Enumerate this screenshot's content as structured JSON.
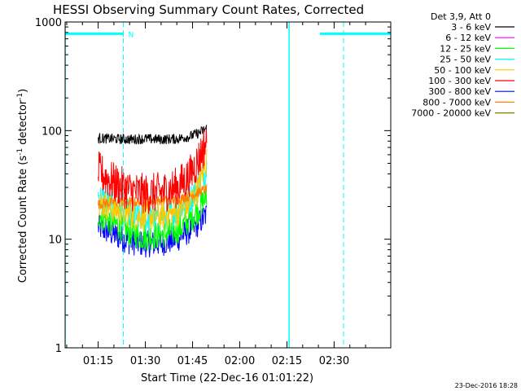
{
  "chart_data": {
    "type": "line",
    "title": "HESSI Observing Summary Count Rates, Corrected",
    "xlabel": "Start Time (22-Dec-16 01:01:22)",
    "ylabel_parts": [
      "Corrected Count Rate (s",
      "-1",
      " detector",
      "-1",
      ")"
    ],
    "y_scale": "log",
    "ylim": [
      1,
      1000
    ],
    "xlim_minutes": [
      64.5,
      168.0
    ],
    "x_ticks": [
      {
        "label": "01:15",
        "minutes": 75
      },
      {
        "label": "01:30",
        "minutes": 90
      },
      {
        "label": "01:45",
        "minutes": 105
      },
      {
        "label": "02:00",
        "minutes": 120
      },
      {
        "label": "02:15",
        "minutes": 135
      },
      {
        "label": "02:30",
        "minutes": 150
      }
    ],
    "y_ticks": [
      {
        "label": "1",
        "value": 1
      },
      {
        "label": "10",
        "value": 10
      },
      {
        "label": "100",
        "value": 100
      },
      {
        "label": "1000",
        "value": 1000
      }
    ],
    "legend_title": "Det 3,9, Att 0",
    "series": [
      {
        "name": "3 - 6 keV",
        "color": "#000000",
        "x": [
          75,
          80,
          85,
          90,
          95,
          100,
          104,
          107,
          109.5
        ],
        "y": [
          85,
          84,
          83,
          84,
          83,
          84,
          88,
          95,
          105
        ],
        "noise": 0.05
      },
      {
        "name": "6 - 12 keV",
        "color": "#ff00ff",
        "x": [],
        "y": []
      },
      {
        "name": "12 - 25 keV",
        "color": "#00ff00",
        "x": [
          75,
          80,
          85,
          90,
          95,
          100,
          104,
          107,
          109.5
        ],
        "y": [
          17,
          14,
          11.5,
          10.5,
          11,
          12,
          15,
          19,
          25
        ],
        "noise": 0.14
      },
      {
        "name": "25 - 50 keV",
        "color": "#00ffff",
        "x": [
          75,
          80,
          85,
          90,
          95,
          100,
          104,
          107,
          109.5
        ],
        "y": [
          25,
          20,
          17,
          15,
          16,
          18,
          23,
          32,
          45
        ],
        "noise": 0.14
      },
      {
        "name": "50 - 100 keV",
        "color": "#ffc800",
        "x": [
          75,
          80,
          85,
          90,
          95,
          100,
          104,
          107,
          109.5
        ],
        "y": [
          22,
          19,
          17,
          16,
          16.5,
          17.5,
          21,
          30,
          55
        ],
        "noise": 0.14
      },
      {
        "name": "100 - 300 keV",
        "color": "#ff0000",
        "x": [
          75,
          80,
          85,
          90,
          95,
          100,
          104,
          107,
          109.5
        ],
        "y": [
          42,
          33,
          28,
          26,
          27,
          30,
          38,
          55,
          80
        ],
        "noise": 0.2
      },
      {
        "name": "300 - 800 keV",
        "color": "#0000ff",
        "x": [
          75,
          80,
          85,
          90,
          95,
          100,
          104,
          107,
          109.5
        ],
        "y": [
          13,
          11,
          9.5,
          9,
          9.2,
          10,
          12,
          14,
          17
        ],
        "noise": 0.13
      },
      {
        "name": "800 - 7000 keV",
        "color": "#ff8000",
        "x": [
          75,
          80,
          85,
          90,
          95,
          100,
          104,
          107,
          109.5
        ],
        "y": [
          21,
          22,
          22,
          22,
          23,
          23,
          25,
          27,
          29
        ],
        "noise": 0.05
      },
      {
        "name": "7000 - 20000 keV",
        "color": "#808000",
        "x": [],
        "y": []
      }
    ],
    "markers": {
      "color": "#00ffff",
      "night_bars": [
        [
          64.5,
          83
        ],
        [
          145.5,
          168
        ]
      ],
      "night_label": "N",
      "bar_level": 780,
      "solid_lines": [
        64.5,
        135.7
      ],
      "dashed_lines": [
        83,
        153
      ]
    }
  },
  "footer": {
    "timestamp": "23-Dec-2016 18:28"
  }
}
